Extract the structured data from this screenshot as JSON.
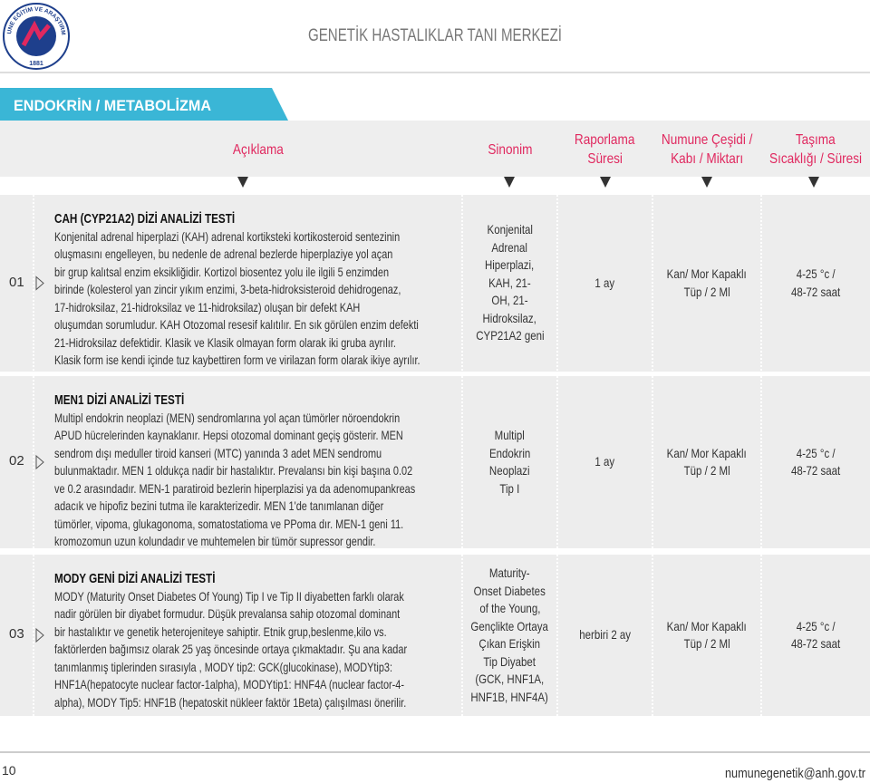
{
  "logo": {
    "ring": "ANKARA NÜMUNE EĞİTİM VE ARAŞTIRMA HASTANESİ",
    "year": "1881"
  },
  "header": {
    "title": "GENETİK HASTALIKLAR TANI MERKEZİ",
    "section": "ENDOKRİN / METABOLİZMA"
  },
  "columns": [
    [
      "Açıklama"
    ],
    [
      "Sinonim"
    ],
    [
      "Raporlama",
      "Süresi"
    ],
    [
      "Numune Çeşidi /",
      "Kabı / Miktarı"
    ],
    [
      "Taşıma",
      "Sıcaklığı / Süresi"
    ]
  ],
  "rows": [
    {
      "number": "01",
      "title": "CAH (CYP21A2) DİZİ ANALİZİ TESTİ",
      "description": [
        "Konjenital adrenal hiperplazi (KAH) adrenal kortiksteki kortikosteroid sentezinin",
        "oluşmasını engelleyen, bu nedenle de adrenal bezlerde hiperplaziye yol açan",
        "bir grup kalıtsal enzim eksikliğidir. Kortizol biosentez yolu ile ilgili 5 enzimden",
        "birinde (kolesterol yan zincir yıkım enzimi, 3-beta-hidroksisteroid dehidrogenaz,",
        "17-hidroksilaz, 21-hidroksilaz ve 11-hidroksilaz) oluşan bir defekt KAH",
        "oluşumdan sorumludur. KAH Otozomal resesif kalıtılır. En sık görülen enzim defekti",
        "21-Hidroksilaz defektidir. Klasik ve Klasik olmayan form olarak iki gruba ayrılır.",
        "Klasik form ise kendi içinde tuz kaybettiren form ve virilazan form olarak ikiye ayrılır."
      ],
      "synonym": [
        "Konjenital",
        "Adrenal",
        "Hiperplazi,",
        "KAH, 21-",
        "OH, 21-",
        "Hidroksilaz,",
        "CYP21A2 geni"
      ],
      "report": [
        "1 ay"
      ],
      "sample": [
        "Kan/ Mor Kapaklı",
        "Tüp / 2 Ml"
      ],
      "transport": [
        "4-25 °c /",
        "48-72 saat"
      ]
    },
    {
      "number": "02",
      "title": "MEN1 DİZİ ANALİZİ TESTİ",
      "description": [
        "Multipl endokrin neoplazi (MEN) sendromlarına yol açan tümörler nöroendokrin",
        "APUD hücrelerinden kaynaklanır. Hepsi otozomal dominant geçiş gösterir. MEN",
        "sendrom dışı meduller tiroid kanseri (MTC) yanında 3 adet MEN sendromu",
        "bulunmaktadır. MEN 1 oldukça nadir bir hastalıktır. Prevalansı bin kişi başına 0.02",
        "ve 0.2 arasındadır. MEN-1 paratiroid bezlerin hiperplazisi ya da adenomupankreas",
        "adacık ve hipofiz bezini tutma ile karakterizedir. MEN 1'de tanımlanan diğer",
        "tümörler, vipoma, glukagonoma, somatostatioma ve PPoma dır. MEN-1 geni 11.",
        "kromozomun uzun kolundadır ve muhtemelen bir tümör supressor gendir."
      ],
      "synonym": [
        "Multipl",
        "Endokrin",
        "Neoplazi",
        "Tip I"
      ],
      "report": [
        "1 ay"
      ],
      "sample": [
        "Kan/ Mor Kapaklı",
        "Tüp / 2 Ml"
      ],
      "transport": [
        "4-25 °c /",
        "48-72 saat"
      ]
    },
    {
      "number": "03",
      "title": "MODY GENİ DİZİ ANALİZİ TESTİ",
      "description": [
        "MODY (Maturity Onset Diabetes Of Young) Tip I ve Tip II diyabetten farklı olarak",
        "nadir görülen bir diyabet formudur. Düşük prevalansa sahip otozomal dominant",
        "bir hastalıktır ve genetik heterojeniteye sahiptir. Etnik grup,beslenme,kilo vs.",
        "faktörlerden bağımsız olarak 25 yaş öncesinde ortaya çıkmaktadır. Şu ana kadar",
        "tanımlanmış tiplerinden sırasıyla , MODY tip2: GCK(glucokinase), MODYtip3:",
        "HNF1A(hepatocyte nuclear factor-1alpha), MODYtip1: HNF4A (nuclear factor-4-",
        "alpha), MODY Tip5: HNF1B (hepatoskit nükleer faktör 1Beta) çalışılması önerilir."
      ],
      "synonym": [
        "Maturity-",
        "Onset Diabetes",
        "of the Young,",
        "Gençlikte Ortaya",
        "Çıkan Erişkin",
        "Tip Diyabet",
        "(GCK, HNF1A,",
        "HNF1B, HNF4A)"
      ],
      "report": [
        "herbiri 2 ay"
      ],
      "sample": [
        "Kan/ Mor Kapaklı",
        "Tüp / 2 Ml"
      ],
      "transport": [
        "4-25 °c /",
        "48-72 saat"
      ]
    }
  ],
  "footer": {
    "page": "10",
    "email": "numunegenetik@anh.gov.tr"
  }
}
